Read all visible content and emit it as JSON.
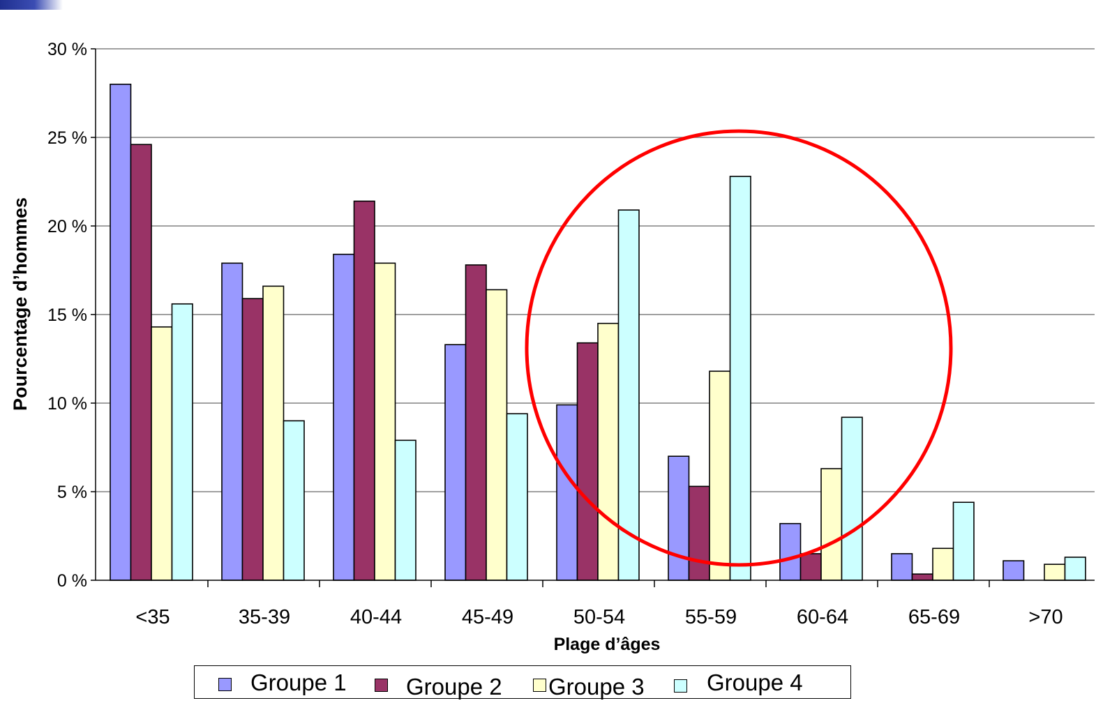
{
  "chart_data": {
    "type": "bar",
    "title": "",
    "xlabel": "Plage d’âges",
    "ylabel": "Pourcentage d’hommes",
    "ylim": [
      0,
      30
    ],
    "yticks": [
      "0 %",
      "5 %",
      "10 %",
      "15 %",
      "20 %",
      "25 %",
      "30 %"
    ],
    "ytick_values": [
      0,
      5,
      10,
      15,
      20,
      25,
      30
    ],
    "grid": true,
    "legend_position": "bottom",
    "categories": [
      "<35",
      "35-39",
      "40-44",
      "45-49",
      "50-54",
      "55-59",
      "60-64",
      "65-69",
      ">70"
    ],
    "series": [
      {
        "name": "Groupe 1",
        "color": "#9999ff",
        "values": [
          28.0,
          17.9,
          18.4,
          13.3,
          9.9,
          7.0,
          3.2,
          1.5,
          1.1
        ]
      },
      {
        "name": "Groupe 2",
        "color": "#993366",
        "values": [
          24.6,
          15.9,
          21.4,
          17.8,
          13.4,
          5.3,
          1.5,
          0.35,
          0
        ]
      },
      {
        "name": "Groupe 3",
        "color": "#ffffcc",
        "values": [
          14.3,
          16.6,
          17.9,
          16.4,
          14.5,
          11.8,
          6.3,
          1.8,
          0.9
        ]
      },
      {
        "name": "Groupe 4",
        "color": "#ccffff",
        "values": [
          15.6,
          9.0,
          7.9,
          9.4,
          20.9,
          22.8,
          9.2,
          4.4,
          1.3
        ]
      }
    ],
    "annotation": {
      "type": "circle",
      "color": "#ff0000"
    }
  }
}
